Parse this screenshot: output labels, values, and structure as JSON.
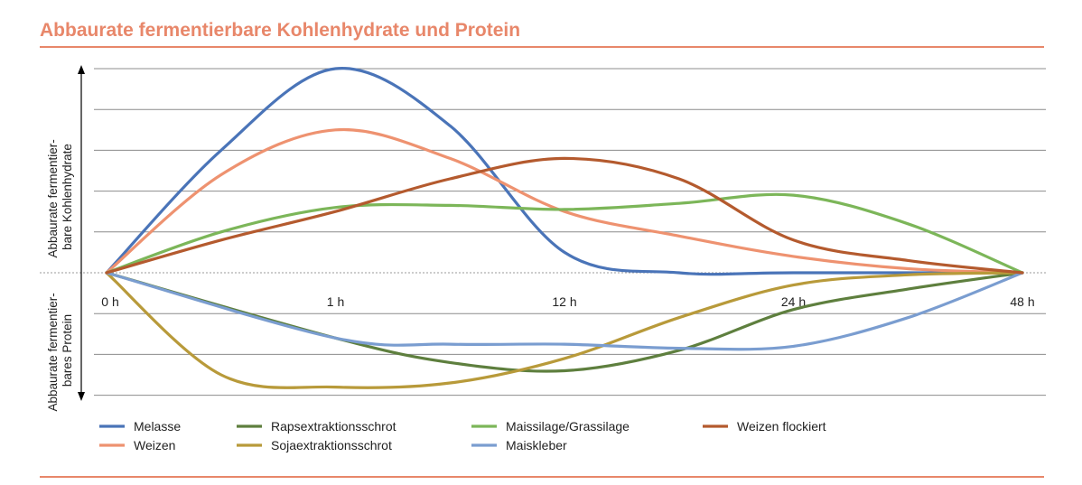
{
  "chart_data": {
    "type": "line",
    "title": "Abbaurate fermentierbare Kohlenhydrate und Protein",
    "ylabel_upper": [
      "Abbaurate fermentier-",
      "bare Kohlenhydrate"
    ],
    "ylabel_lower": [
      "Abbaurate fermentier-",
      "bares Protein"
    ],
    "categories": [
      "0 h",
      "1 h",
      "12 h",
      "24 h",
      "48 h"
    ],
    "x_range": [
      0,
      4
    ],
    "ylim": [
      -3,
      5
    ],
    "grid": true,
    "legend_position": "bottom",
    "series": [
      {
        "name": "Melasse",
        "color": "#4A74B8",
        "points": [
          [
            0,
            0
          ],
          [
            0.5,
            3.0
          ],
          [
            1,
            5.0
          ],
          [
            1.5,
            3.6
          ],
          [
            2,
            0.5
          ],
          [
            2.5,
            0.0
          ],
          [
            3,
            0.0
          ],
          [
            4,
            0
          ]
        ]
      },
      {
        "name": "Weizen",
        "color": "#EE9270",
        "points": [
          [
            0,
            0
          ],
          [
            0.5,
            2.4
          ],
          [
            1,
            3.5
          ],
          [
            1.5,
            2.8
          ],
          [
            2,
            1.5
          ],
          [
            2.5,
            0.9
          ],
          [
            3,
            0.4
          ],
          [
            3.5,
            0.1
          ],
          [
            4,
            0
          ]
        ]
      },
      {
        "name": "Rapsextraktionsschrot",
        "color": "#5E7F3E",
        "points": [
          [
            0,
            0
          ],
          [
            1,
            -1.6
          ],
          [
            1.5,
            -2.2
          ],
          [
            2,
            -2.4
          ],
          [
            2.5,
            -1.9
          ],
          [
            3,
            -0.9
          ],
          [
            3.5,
            -0.4
          ],
          [
            4,
            0
          ]
        ]
      },
      {
        "name": "Sojaextraktionsschrot",
        "color": "#B89A3A",
        "points": [
          [
            0,
            0
          ],
          [
            0.5,
            -2.5
          ],
          [
            1,
            -2.8
          ],
          [
            1.5,
            -2.7
          ],
          [
            2,
            -2.1
          ],
          [
            2.5,
            -1.1
          ],
          [
            3,
            -0.3
          ],
          [
            3.5,
            -0.05
          ],
          [
            4,
            0
          ]
        ]
      },
      {
        "name": "Maissilage/Grassilage",
        "color": "#7CB659",
        "points": [
          [
            0,
            0
          ],
          [
            0.5,
            1.0
          ],
          [
            1,
            1.6
          ],
          [
            1.5,
            1.65
          ],
          [
            2,
            1.55
          ],
          [
            2.5,
            1.7
          ],
          [
            3,
            1.9
          ],
          [
            3.5,
            1.2
          ],
          [
            4,
            0
          ]
        ]
      },
      {
        "name": "Maiskleber",
        "color": "#7A9DD0",
        "points": [
          [
            0,
            0
          ],
          [
            1,
            -1.6
          ],
          [
            1.5,
            -1.75
          ],
          [
            2,
            -1.75
          ],
          [
            2.5,
            -1.85
          ],
          [
            3,
            -1.8
          ],
          [
            3.5,
            -1.1
          ],
          [
            4,
            0
          ]
        ]
      },
      {
        "name": "Weizen flockiert",
        "color": "#B45A2E",
        "points": [
          [
            0,
            0
          ],
          [
            0.5,
            0.8
          ],
          [
            1,
            1.5
          ],
          [
            1.5,
            2.3
          ],
          [
            2,
            2.8
          ],
          [
            2.5,
            2.3
          ],
          [
            3,
            0.8
          ],
          [
            3.5,
            0.3
          ],
          [
            4,
            0
          ]
        ]
      }
    ],
    "legend_rows": [
      [
        "Melasse",
        "Rapsextraktionsschrot",
        "Maissilage/Grassilage",
        "Weizen flockiert"
      ],
      [
        "Weizen",
        "Sojaextraktionsschrot",
        "Maiskleber"
      ]
    ]
  },
  "colors": {
    "accent": "#E8876A",
    "grid": "#8c8c8c"
  }
}
